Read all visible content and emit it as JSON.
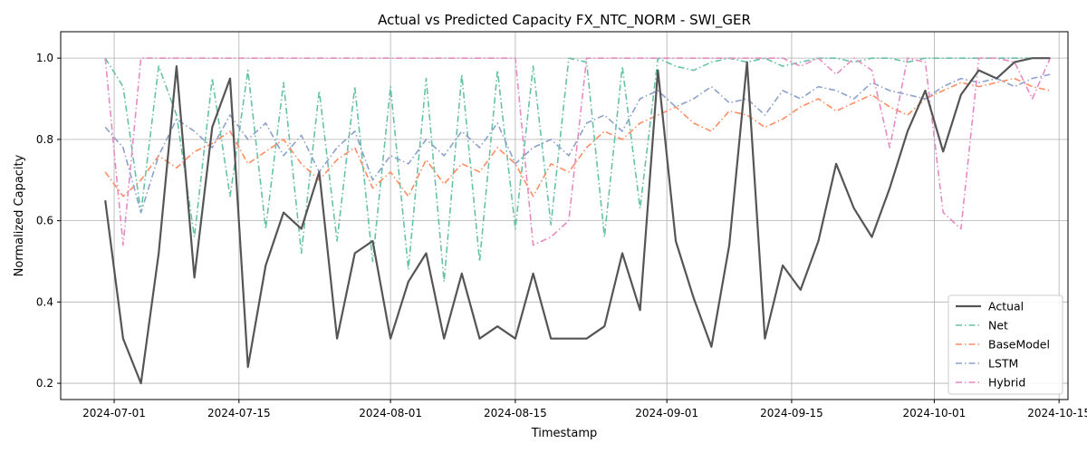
{
  "chart_data": {
    "type": "line",
    "title": "Actual vs Predicted Capacity FX_NTC_NORM - SWI_GER",
    "xlabel": "Timestamp",
    "ylabel": "Normalized Capacity",
    "x_range": [
      "2024-06-25",
      "2024-10-16"
    ],
    "ylim": [
      0.16,
      1.065
    ],
    "x_ticks": [
      "2024-07-01",
      "2024-07-15",
      "2024-08-01",
      "2024-08-15",
      "2024-09-01",
      "2024-09-15",
      "2024-10-01",
      "2024-10-15"
    ],
    "y_ticks": [
      0.2,
      0.4,
      0.6,
      0.8,
      1.0
    ],
    "y_tick_labels": [
      "0.2",
      "0.4",
      "0.6",
      "0.8",
      "1.0"
    ],
    "grid": true,
    "legend_position": "bottom-right",
    "x": [
      "2024-06-30",
      "2024-07-02",
      "2024-07-04",
      "2024-07-06",
      "2024-07-08",
      "2024-07-10",
      "2024-07-12",
      "2024-07-14",
      "2024-07-16",
      "2024-07-18",
      "2024-07-20",
      "2024-07-22",
      "2024-07-24",
      "2024-07-26",
      "2024-07-28",
      "2024-07-30",
      "2024-08-01",
      "2024-08-03",
      "2024-08-05",
      "2024-08-07",
      "2024-08-09",
      "2024-08-11",
      "2024-08-13",
      "2024-08-15",
      "2024-08-17",
      "2024-08-19",
      "2024-08-21",
      "2024-08-23",
      "2024-08-25",
      "2024-08-27",
      "2024-08-29",
      "2024-08-31",
      "2024-09-02",
      "2024-09-04",
      "2024-09-06",
      "2024-09-08",
      "2024-09-10",
      "2024-09-12",
      "2024-09-14",
      "2024-09-16",
      "2024-09-18",
      "2024-09-20",
      "2024-09-22",
      "2024-09-24",
      "2024-09-26",
      "2024-09-28",
      "2024-09-30",
      "2024-10-02",
      "2024-10-04",
      "2024-10-06",
      "2024-10-08",
      "2024-10-10",
      "2024-10-12",
      "2024-10-14"
    ],
    "series": [
      {
        "name": "Actual",
        "color": "#555555",
        "values": [
          0.65,
          0.31,
          0.2,
          0.52,
          0.98,
          0.46,
          0.83,
          0.95,
          0.24,
          0.49,
          0.62,
          0.58,
          0.72,
          0.31,
          0.52,
          0.55,
          0.31,
          0.45,
          0.52,
          0.31,
          0.47,
          0.31,
          0.34,
          0.31,
          0.47,
          0.31,
          0.31,
          0.31,
          0.34,
          0.52,
          0.38,
          0.97,
          0.55,
          0.41,
          0.29,
          0.54,
          0.99,
          0.31,
          0.49,
          0.43,
          0.55,
          0.74,
          0.63,
          0.56,
          0.68,
          0.82,
          0.92,
          0.77,
          0.91,
          0.97,
          0.95,
          0.99,
          1.0,
          1.0
        ]
      },
      {
        "name": "Net",
        "color": "#66c2a5",
        "values": [
          1.0,
          0.93,
          0.62,
          0.98,
          0.86,
          0.56,
          0.95,
          0.66,
          0.97,
          0.58,
          0.94,
          0.52,
          0.92,
          0.55,
          0.93,
          0.5,
          0.93,
          0.48,
          0.95,
          0.45,
          0.96,
          0.5,
          0.97,
          0.58,
          0.98,
          0.59,
          1.0,
          0.99,
          0.56,
          0.98,
          0.63,
          1.0,
          0.98,
          0.97,
          0.99,
          1.0,
          0.99,
          1.0,
          0.98,
          0.99,
          1.0,
          1.0,
          0.99,
          1.0,
          1.0,
          0.99,
          1.0,
          1.0,
          1.0,
          1.0,
          1.0,
          1.0,
          1.0,
          1.0
        ]
      },
      {
        "name": "BaseModel",
        "color": "#fc8d62",
        "values": [
          0.72,
          0.66,
          0.7,
          0.76,
          0.73,
          0.77,
          0.79,
          0.82,
          0.74,
          0.77,
          0.8,
          0.74,
          0.7,
          0.75,
          0.78,
          0.68,
          0.72,
          0.66,
          0.75,
          0.69,
          0.74,
          0.72,
          0.78,
          0.74,
          0.66,
          0.74,
          0.72,
          0.78,
          0.82,
          0.8,
          0.84,
          0.86,
          0.88,
          0.84,
          0.82,
          0.87,
          0.86,
          0.83,
          0.85,
          0.88,
          0.9,
          0.87,
          0.89,
          0.91,
          0.88,
          0.86,
          0.9,
          0.92,
          0.94,
          0.93,
          0.94,
          0.95,
          0.93,
          0.92
        ]
      },
      {
        "name": "LSTM",
        "color": "#8da0cb",
        "values": [
          0.83,
          0.78,
          0.62,
          0.76,
          0.85,
          0.82,
          0.78,
          0.86,
          0.8,
          0.84,
          0.76,
          0.81,
          0.72,
          0.78,
          0.82,
          0.7,
          0.76,
          0.74,
          0.8,
          0.76,
          0.82,
          0.78,
          0.84,
          0.74,
          0.78,
          0.8,
          0.76,
          0.84,
          0.86,
          0.82,
          0.9,
          0.92,
          0.88,
          0.9,
          0.93,
          0.89,
          0.9,
          0.86,
          0.92,
          0.9,
          0.93,
          0.92,
          0.9,
          0.94,
          0.92,
          0.91,
          0.9,
          0.93,
          0.95,
          0.94,
          0.95,
          0.93,
          0.95,
          0.96
        ]
      },
      {
        "name": "Hybrid",
        "color": "#e78ac3",
        "values": [
          1.0,
          0.54,
          1.0,
          1.0,
          1.0,
          1.0,
          1.0,
          1.0,
          1.0,
          1.0,
          1.0,
          1.0,
          1.0,
          1.0,
          1.0,
          1.0,
          1.0,
          1.0,
          1.0,
          1.0,
          1.0,
          1.0,
          1.0,
          1.0,
          0.54,
          0.56,
          0.6,
          1.0,
          1.0,
          1.0,
          1.0,
          1.0,
          1.0,
          1.0,
          1.0,
          1.0,
          1.0,
          1.0,
          1.0,
          0.98,
          1.0,
          0.96,
          1.0,
          0.97,
          0.78,
          1.0,
          0.99,
          0.62,
          0.58,
          1.0,
          1.0,
          0.99,
          0.9,
          1.0
        ]
      }
    ]
  }
}
